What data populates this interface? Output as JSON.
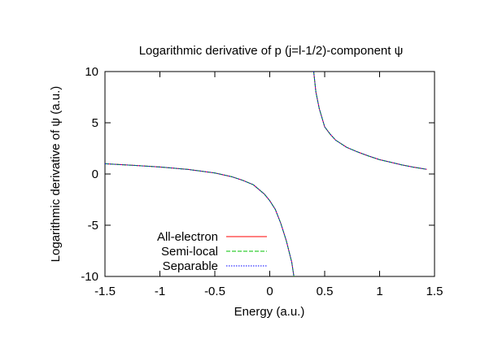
{
  "chart_data": {
    "type": "line",
    "title": "Logarithmic derivative of p (j=l-1/2)-component ψ",
    "xlabel": "Energy (a.u.)",
    "ylabel": "Logarithmic derivative of ψ (a.u.)",
    "xlim": [
      -1.5,
      1.5
    ],
    "ylim": [
      -10,
      10
    ],
    "x_ticks": [
      -1.5,
      -1,
      -0.5,
      0,
      0.5,
      1,
      1.5
    ],
    "x_tick_labels": [
      "-1.5",
      "-1",
      "-0.5",
      "0",
      "0.5",
      "1",
      "1.5"
    ],
    "y_ticks": [
      -10,
      -5,
      0,
      5,
      10
    ],
    "y_tick_labels": [
      "-10",
      "-5",
      "0",
      "5",
      "10"
    ],
    "grid": false,
    "legend_position": "bottom-left",
    "series": [
      {
        "name": "All-electron",
        "color": "#ff0000",
        "dash": "solid",
        "segments": [
          {
            "x": [
              -1.5,
              -1.25,
              -1.0,
              -0.75,
              -0.5,
              -0.35,
              -0.25,
              -0.15,
              -0.05,
              0.0,
              0.05,
              0.1,
              0.15,
              0.2,
              0.22
            ],
            "y": [
              1.0,
              0.85,
              0.68,
              0.45,
              0.1,
              -0.25,
              -0.6,
              -1.05,
              -1.95,
              -2.6,
              -3.45,
              -4.8,
              -6.5,
              -8.6,
              -10.0
            ]
          },
          {
            "x": [
              0.4,
              0.42,
              0.45,
              0.5,
              0.55,
              0.6,
              0.7,
              0.8,
              0.9,
              1.0,
              1.1,
              1.2,
              1.3,
              1.43
            ],
            "y": [
              10.0,
              8.0,
              6.4,
              4.6,
              3.9,
              3.3,
              2.6,
              2.15,
              1.75,
              1.4,
              1.15,
              0.9,
              0.68,
              0.45
            ]
          }
        ]
      },
      {
        "name": "Semi-local",
        "color": "#00c000",
        "dash": "dashed",
        "segments": [
          {
            "x": [
              -1.5,
              -1.25,
              -1.0,
              -0.75,
              -0.5,
              -0.35,
              -0.25,
              -0.15,
              -0.05,
              0.0,
              0.05,
              0.1,
              0.15,
              0.2,
              0.22
            ],
            "y": [
              1.0,
              0.85,
              0.68,
              0.45,
              0.1,
              -0.25,
              -0.6,
              -1.05,
              -1.95,
              -2.6,
              -3.45,
              -4.8,
              -6.5,
              -8.6,
              -10.0
            ]
          },
          {
            "x": [
              0.4,
              0.42,
              0.45,
              0.5,
              0.55,
              0.6,
              0.7,
              0.8,
              0.9,
              1.0,
              1.1,
              1.2,
              1.3,
              1.43
            ],
            "y": [
              10.0,
              8.0,
              6.4,
              4.6,
              3.9,
              3.3,
              2.6,
              2.15,
              1.75,
              1.4,
              1.15,
              0.9,
              0.68,
              0.45
            ]
          }
        ]
      },
      {
        "name": "Separable",
        "color": "#0000ff",
        "dash": "dotted",
        "segments": [
          {
            "x": [
              -1.5,
              -1.25,
              -1.0,
              -0.75,
              -0.5,
              -0.35,
              -0.25,
              -0.15,
              -0.05,
              0.0,
              0.05,
              0.1,
              0.15,
              0.2,
              0.22
            ],
            "y": [
              1.0,
              0.85,
              0.68,
              0.45,
              0.1,
              -0.25,
              -0.6,
              -1.05,
              -1.95,
              -2.6,
              -3.45,
              -4.8,
              -6.5,
              -8.6,
              -10.0
            ]
          },
          {
            "x": [
              0.4,
              0.42,
              0.45,
              0.5,
              0.55,
              0.6,
              0.7,
              0.8,
              0.9,
              1.0,
              1.1,
              1.2,
              1.3,
              1.43
            ],
            "y": [
              10.0,
              8.0,
              6.4,
              4.6,
              3.9,
              3.3,
              2.6,
              2.15,
              1.75,
              1.4,
              1.15,
              0.9,
              0.68,
              0.45
            ]
          }
        ]
      }
    ]
  }
}
